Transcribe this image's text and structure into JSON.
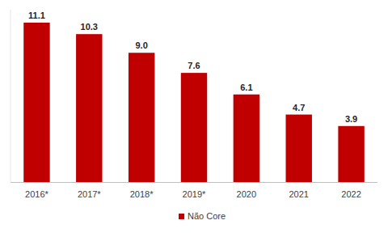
{
  "chart_data": {
    "type": "bar",
    "categories": [
      "2016*",
      "2017*",
      "2018*",
      "2019*",
      "2020",
      "2021",
      "2022"
    ],
    "series": [
      {
        "name": "Não Core",
        "color": "#c00000",
        "values": [
          11.1,
          10.3,
          9.0,
          7.6,
          6.1,
          4.7,
          3.9
        ],
        "value_labels": [
          "11.1",
          "10.3",
          "9.0",
          "7.6",
          "6.1",
          "4.7",
          "3.9"
        ]
      }
    ],
    "ylim": [
      0,
      12
    ],
    "data_labels": true,
    "tick_labels": "x",
    "grid": false,
    "legend": "bottom"
  }
}
